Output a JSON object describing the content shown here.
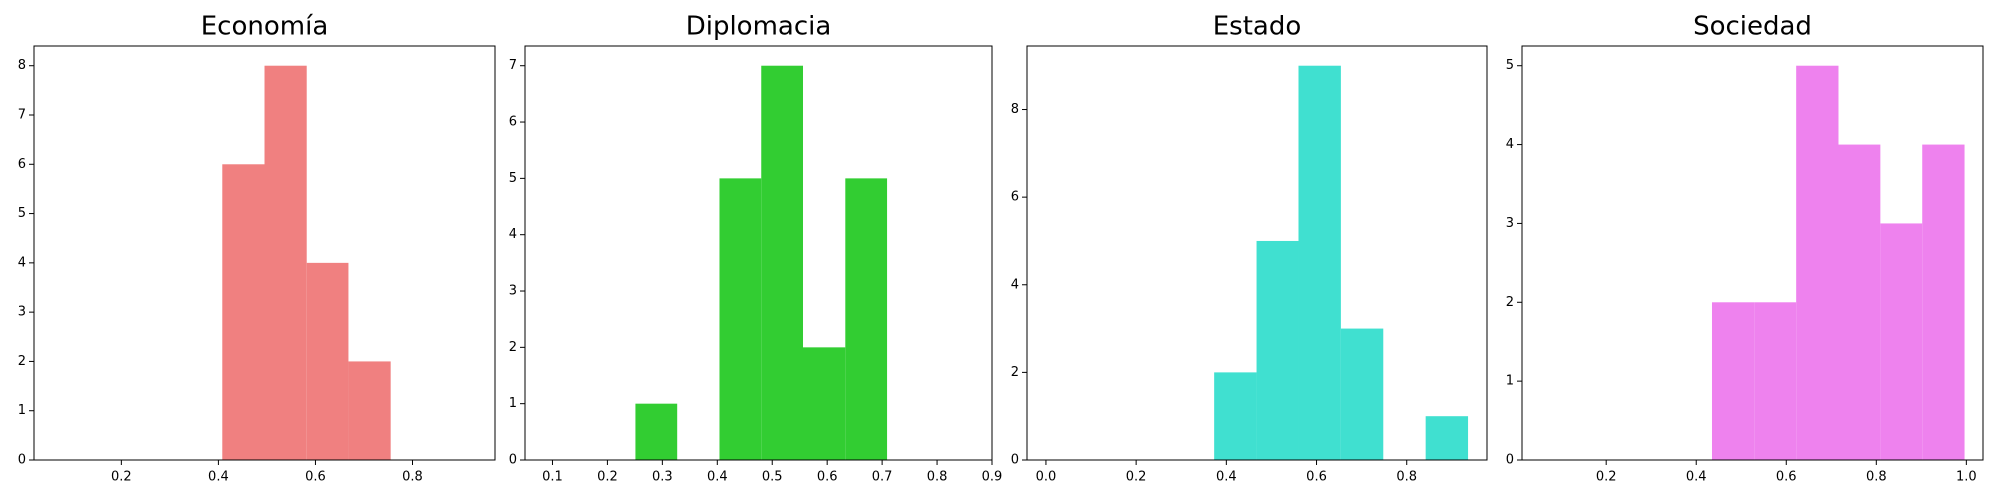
{
  "chart_data": [
    {
      "type": "histogram",
      "title": "Economía",
      "color": "#f08080",
      "bins": [
        0.408,
        0.495,
        0.582,
        0.668,
        0.755
      ],
      "values": [
        6,
        8,
        4,
        2
      ],
      "xlim": [
        0.02,
        0.97
      ],
      "xticks": [
        0.2,
        0.4,
        0.6,
        0.8
      ],
      "ylim": [
        0,
        8.4
      ],
      "yticks": [
        0,
        1,
        2,
        3,
        4,
        5,
        6,
        7,
        8
      ]
    },
    {
      "type": "histogram",
      "title": "Diplomacia",
      "color": "#32cd32",
      "bins": [
        0.251,
        0.327,
        0.404,
        0.48,
        0.556,
        0.633,
        0.709
      ],
      "values": [
        1,
        0,
        5,
        7,
        2,
        5
      ],
      "xlim": [
        0.05,
        0.9
      ],
      "xticks": [
        0.1,
        0.2,
        0.3,
        0.4,
        0.5,
        0.6,
        0.7,
        0.8,
        0.9
      ],
      "ylim": [
        0,
        7.35
      ],
      "yticks": [
        0,
        1,
        2,
        3,
        4,
        5,
        6,
        7
      ]
    },
    {
      "type": "histogram",
      "title": "Estado",
      "color": "#40e0d0",
      "bins": [
        0.373,
        0.467,
        0.56,
        0.654,
        0.748,
        0.842,
        0.936
      ],
      "values": [
        2,
        5,
        9,
        3,
        0,
        1
      ],
      "xlim": [
        -0.042,
        0.978
      ],
      "xticks": [
        {
          "value": 0,
          "label": "0.0"
        },
        0.2,
        0.4,
        0.6,
        0.8
      ],
      "ylim": [
        0,
        9.45
      ],
      "yticks": [
        0,
        2,
        4,
        6,
        8
      ]
    },
    {
      "type": "histogram",
      "title": "Sociedad",
      "color": "#ee82ee",
      "bins": [
        0.435,
        0.529,
        0.622,
        0.716,
        0.809,
        0.902,
        0.996
      ],
      "values": [
        2,
        2,
        5,
        4,
        3,
        4
      ],
      "xlim": [
        0.013,
        1.037
      ],
      "xticks": [
        0.2,
        0.4,
        0.6,
        0.8,
        {
          "value": 1,
          "label": "1.0"
        }
      ],
      "ylim": [
        0,
        5.25
      ],
      "yticks": [
        0,
        1,
        2,
        3,
        4,
        5
      ]
    }
  ]
}
